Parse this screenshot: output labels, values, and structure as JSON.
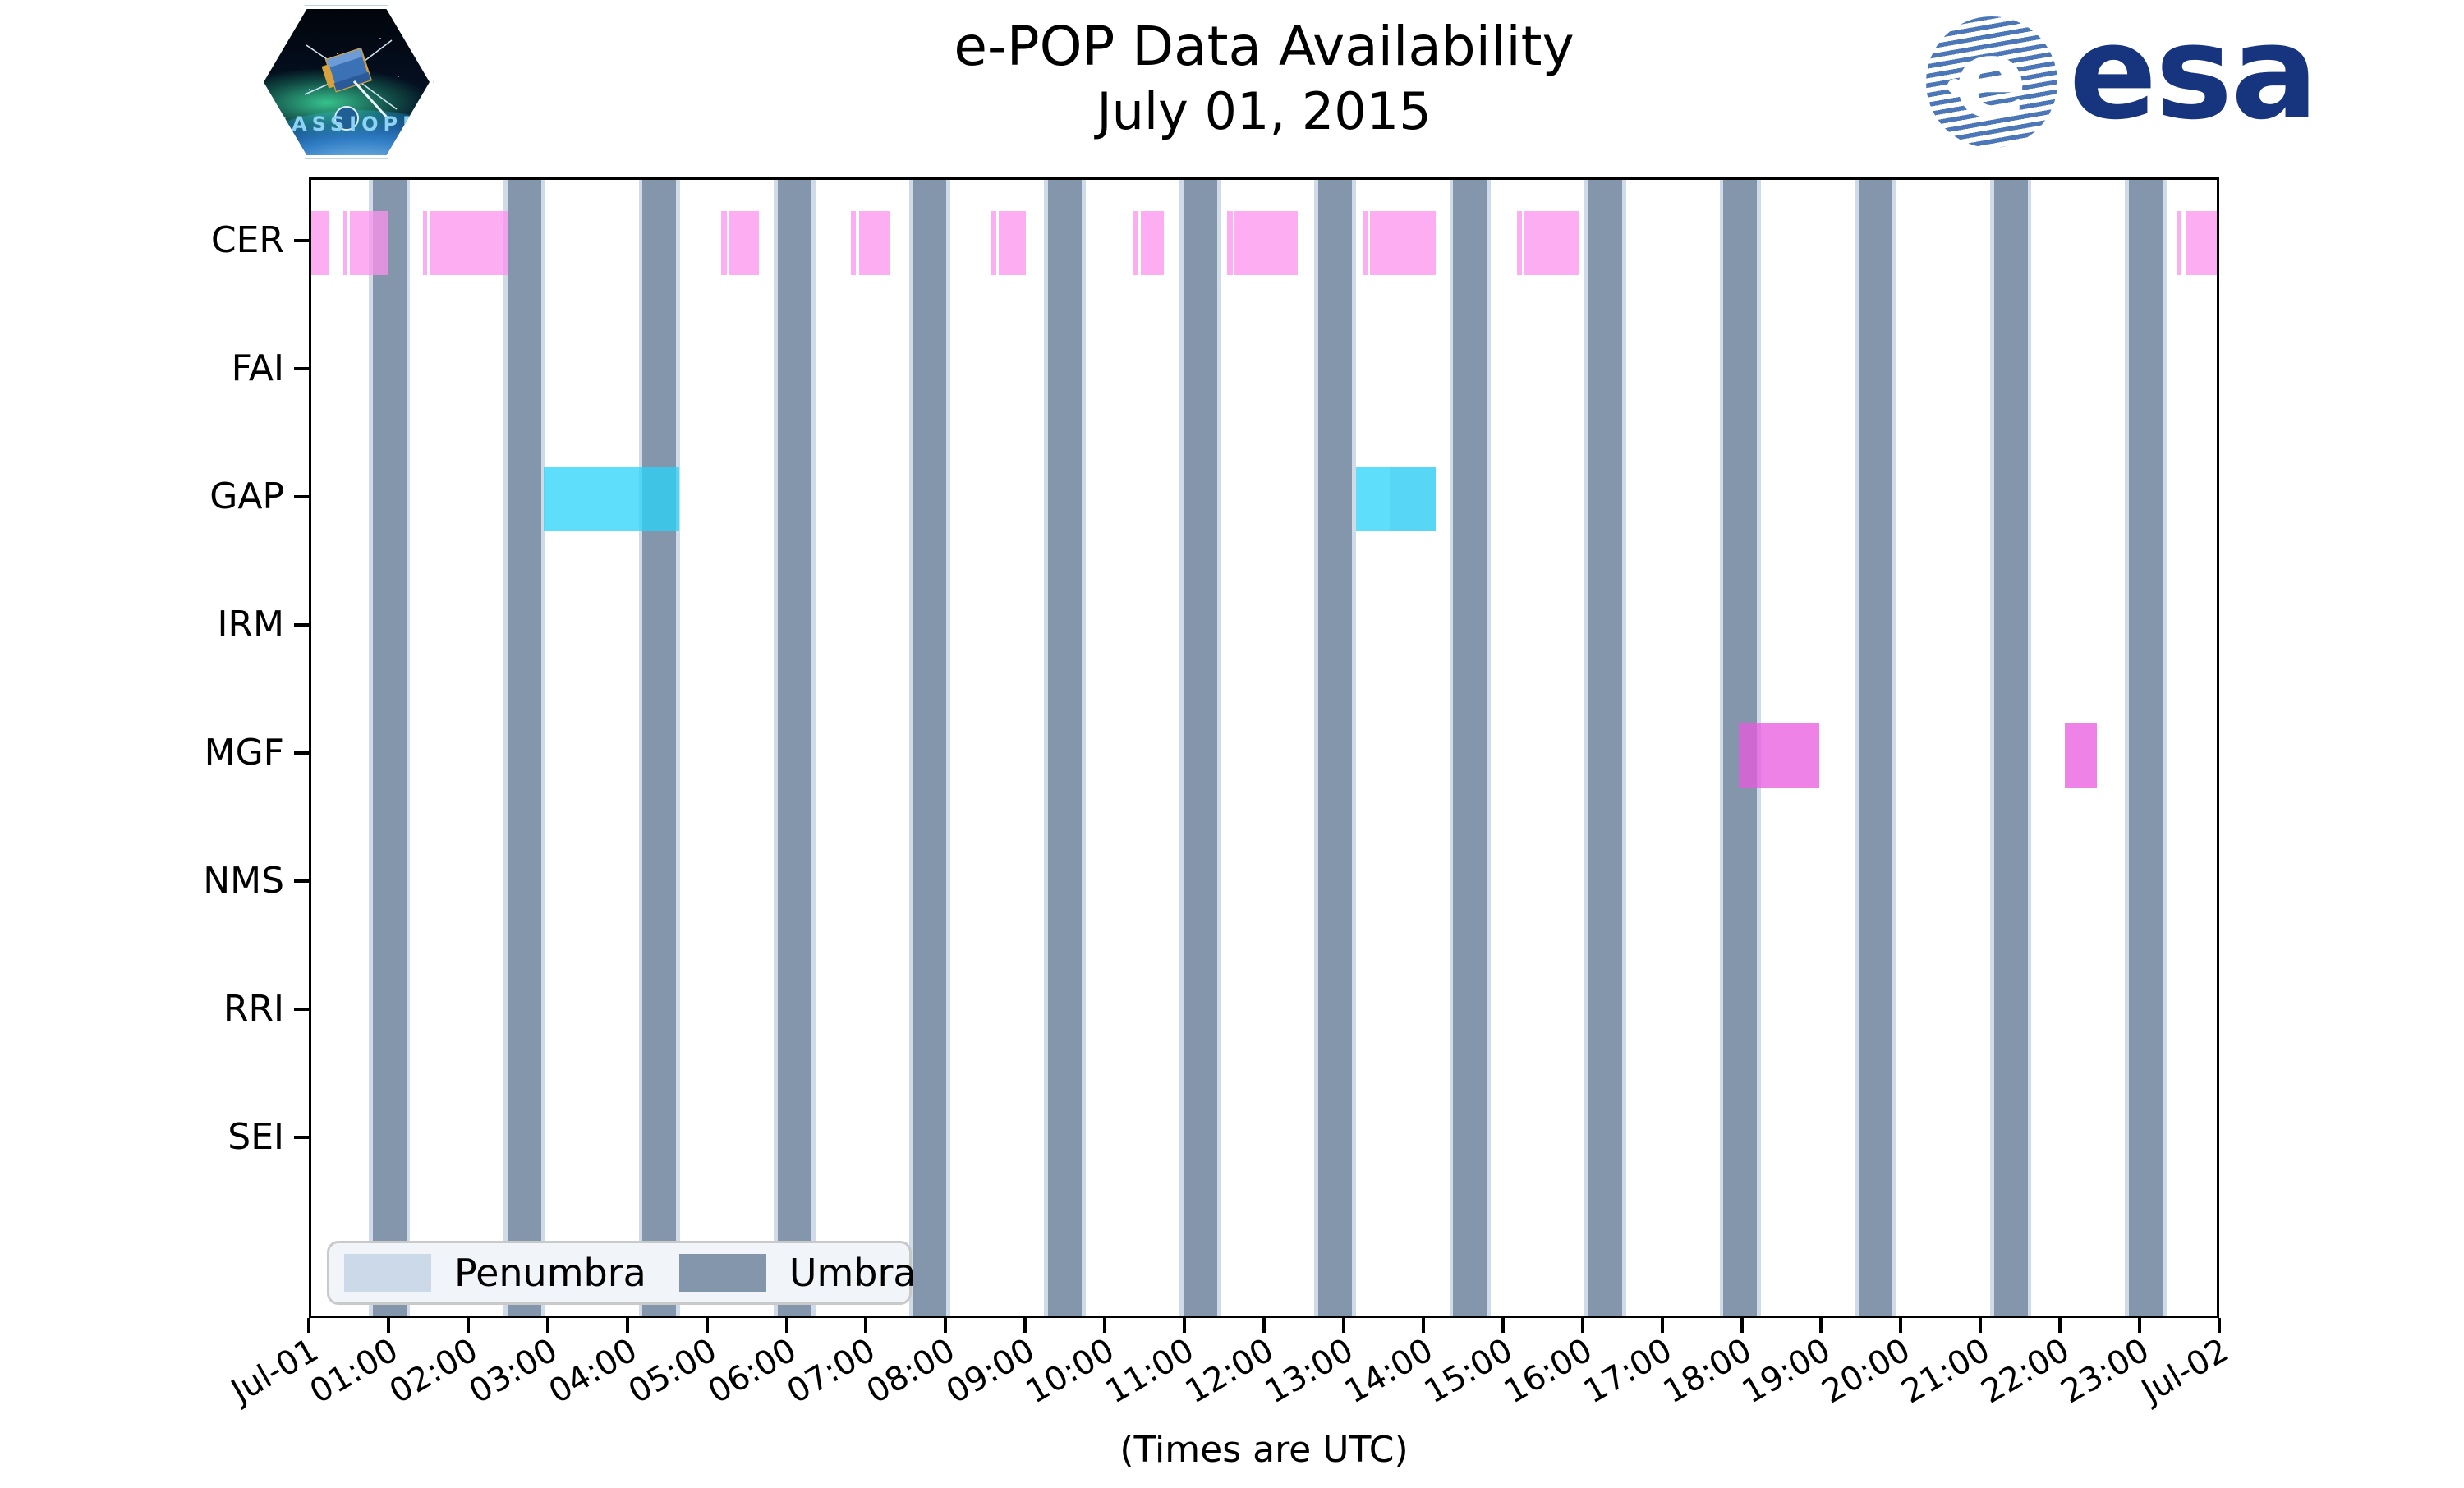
{
  "header": {
    "mission_patch_text": "CASSIOPE",
    "esa_wordmark": "esa",
    "esa_globe_letter": "e"
  },
  "legend": {
    "items": [
      {
        "label": "Penumbra",
        "color": "#ccd9e8"
      },
      {
        "label": "Umbra",
        "color": "#8496ab"
      }
    ]
  },
  "chart_data": {
    "type": "availability-timeline",
    "title": "e-POP Data Availability",
    "subtitle": "July 01, 2015",
    "xlabel": "(Times are UTC)",
    "x_range_hours": [
      0,
      24
    ],
    "x_tick_labels": [
      "Jul-01",
      "01:00",
      "02:00",
      "03:00",
      "04:00",
      "05:00",
      "06:00",
      "07:00",
      "08:00",
      "09:00",
      "10:00",
      "11:00",
      "12:00",
      "13:00",
      "14:00",
      "15:00",
      "16:00",
      "17:00",
      "18:00",
      "19:00",
      "20:00",
      "21:00",
      "22:00",
      "23:00",
      "Jul-02"
    ],
    "colors": {
      "umbra": "#8496ab",
      "penumbra": "#cfdbe9",
      "bar_alpha": 0.75
    },
    "penumbra_edge_hours": 0.05,
    "umbra_intervals": [
      [
        0.769,
        1.192
      ],
      [
        2.466,
        2.889
      ],
      [
        4.163,
        4.586
      ],
      [
        5.861,
        6.284
      ],
      [
        7.558,
        7.981
      ],
      [
        9.255,
        9.678
      ],
      [
        10.953,
        11.376
      ],
      [
        12.65,
        13.073
      ],
      [
        14.347,
        14.77
      ],
      [
        16.045,
        16.468
      ],
      [
        17.742,
        18.165
      ],
      [
        19.439,
        19.862
      ],
      [
        21.137,
        21.56
      ],
      [
        22.834,
        23.257
      ]
    ],
    "rows": [
      {
        "label": "CER",
        "color": "#fc92ec",
        "segments": [
          [
            0.0,
            0.217
          ],
          [
            0.402,
            0.444
          ],
          [
            0.485,
            0.97
          ],
          [
            1.403,
            1.455
          ],
          [
            1.481,
            2.466
          ],
          [
            5.148,
            5.221
          ],
          [
            5.252,
            5.623
          ],
          [
            6.784,
            6.841
          ],
          [
            6.878,
            7.274
          ],
          [
            8.543,
            8.605
          ],
          [
            8.641,
            8.976
          ],
          [
            10.318,
            10.38
          ],
          [
            10.417,
            10.71
          ],
          [
            11.5,
            11.573
          ],
          [
            11.601,
            12.391
          ],
          [
            13.213,
            13.268
          ],
          [
            13.304,
            14.125
          ],
          [
            15.146,
            15.208
          ],
          [
            15.239,
            15.916
          ],
          [
            23.442,
            23.494
          ],
          [
            23.545,
            23.985
          ]
        ]
      },
      {
        "label": "FAI",
        "color": "#ffc87a",
        "segments": []
      },
      {
        "label": "GAP",
        "color": "#2ad3fa",
        "segments": [
          [
            2.92,
            4.62
          ],
          [
            13.124,
            13.547
          ],
          [
            13.547,
            14.125,
            "#1fc8f2"
          ]
        ]
      },
      {
        "label": "IRM",
        "color": "#b0e57c",
        "segments": []
      },
      {
        "label": "MGF",
        "color": "#e958df",
        "segments": [
          [
            17.932,
            18.944
          ],
          [
            22.028,
            22.43
          ]
        ]
      },
      {
        "label": "NMS",
        "color": "#f4a6a6",
        "segments": []
      },
      {
        "label": "RRI",
        "color": "#c0a9f0",
        "segments": []
      },
      {
        "label": "SEI",
        "color": "#f7e07a",
        "segments": []
      }
    ]
  }
}
